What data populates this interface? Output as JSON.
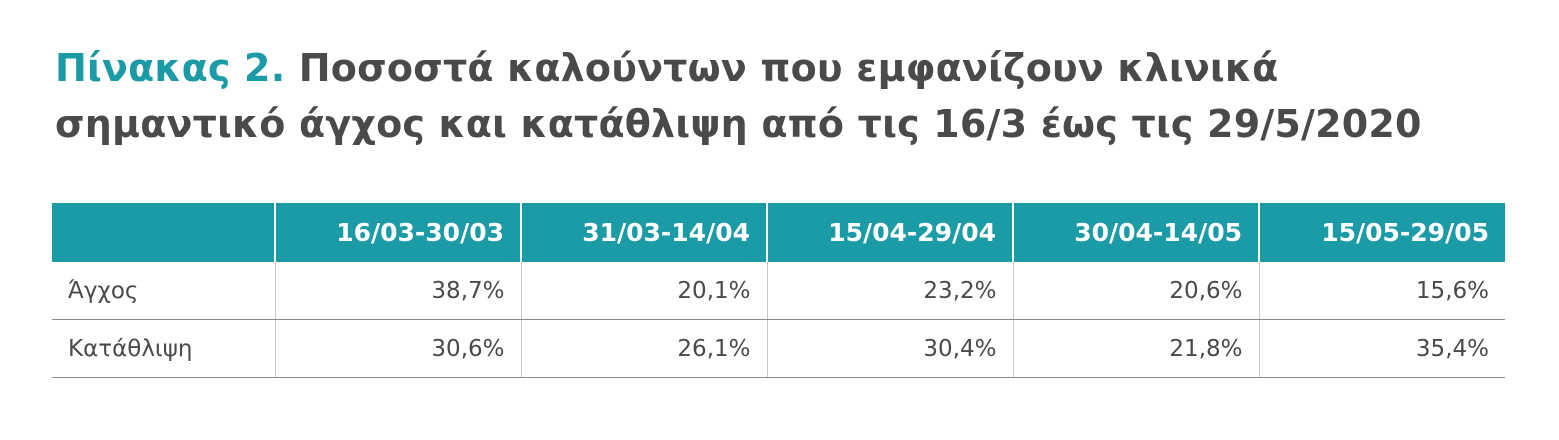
{
  "title": {
    "label": "Πίνακας 2.",
    "lines": [
      "Ποσοστά καλούντων που εμφανίζουν κλινικά",
      "σημαντικό άγχος και κατάθλιψη από τις 16/3 έως τις 29/5/2020"
    ]
  },
  "table": {
    "columns": [
      "16/03-30/03",
      "31/03-14/04",
      "15/04-29/04",
      "30/04-14/05",
      "15/05-29/05"
    ],
    "rows": [
      [
        "Άγχος",
        "38,7%",
        "20,1%",
        "23,2%",
        "20,6%",
        "15,6%"
      ],
      [
        "Κατάθλιψη",
        "30,6%",
        "26,1%",
        "30,4%",
        "21,8%",
        "35,4%"
      ]
    ]
  }
}
